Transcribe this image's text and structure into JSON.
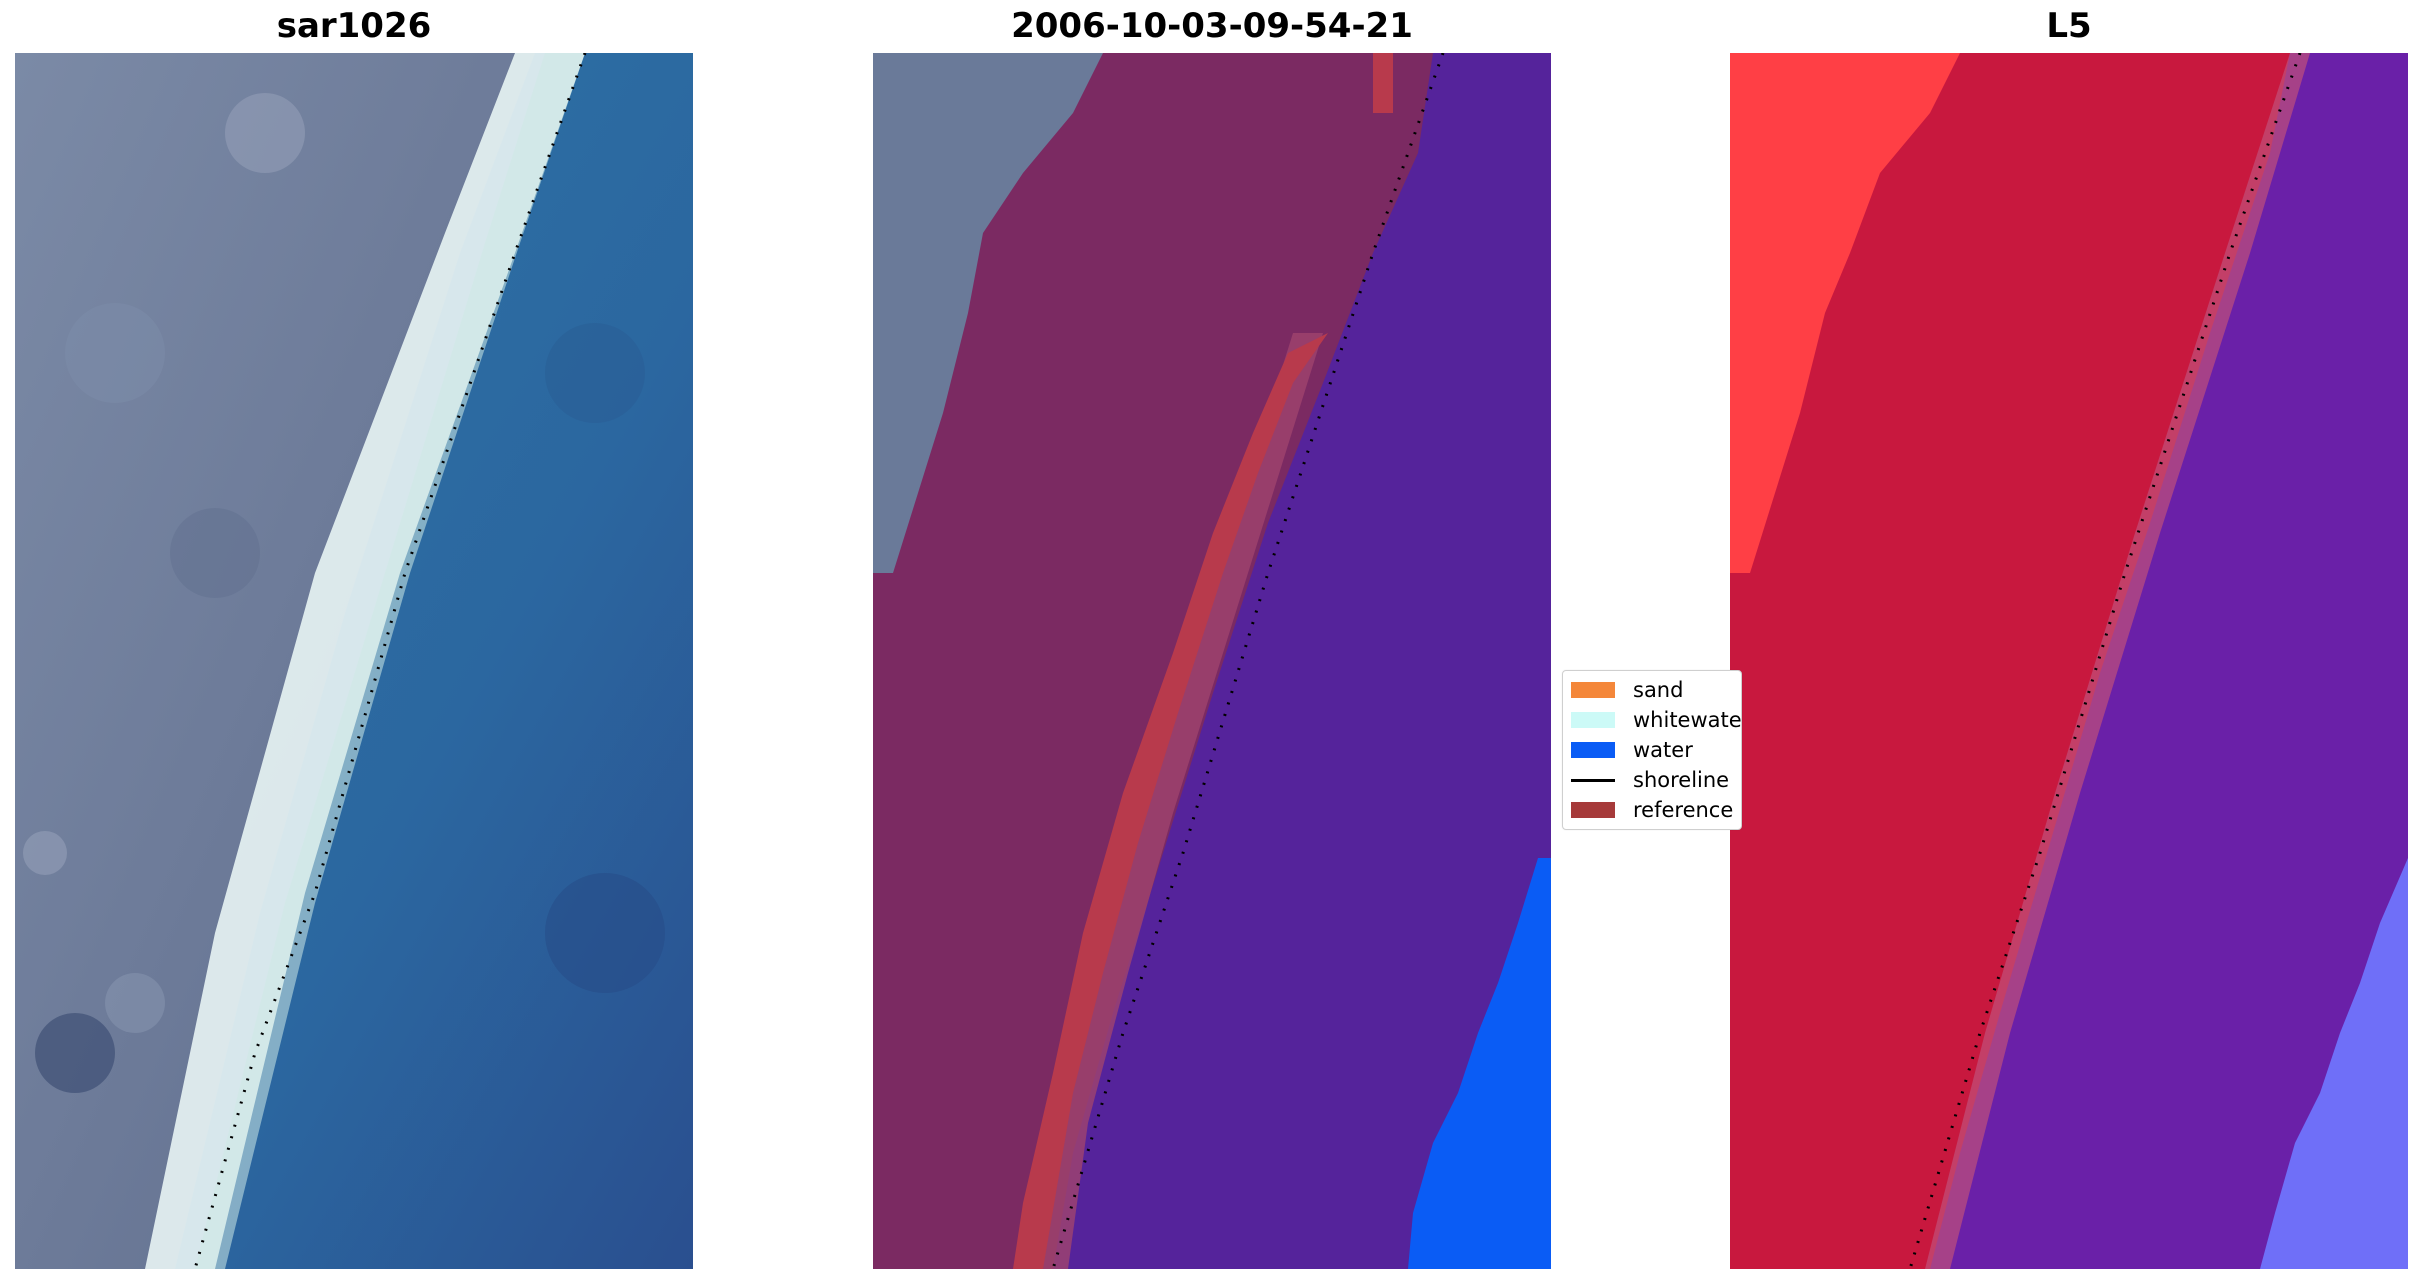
{
  "panels": [
    {
      "title": "sar1026"
    },
    {
      "title": "2006-10-03-09-54-21"
    },
    {
      "title": "L5"
    }
  ],
  "legend": {
    "items": [
      {
        "label": "sand",
        "color": "#f4873a",
        "kind": "patch"
      },
      {
        "label": "whitewater",
        "color": "#ccfaf7",
        "kind": "patch"
      },
      {
        "label": "water",
        "color": "#0a5cf5",
        "kind": "patch"
      },
      {
        "label": "shoreline",
        "color": "#000000",
        "kind": "line"
      },
      {
        "label": "reference",
        "color": "#a63a3a",
        "kind": "patch"
      }
    ]
  },
  "colors": {
    "land_rgb": "#6e7c97",
    "beach_rgb": "#e8f3f3",
    "sea_rgb": "#2c6aa0",
    "land_class": "#7b2a62",
    "sand_class": "#b83a4c",
    "water_class": "#55239b",
    "water_bright": "#0a5cf5",
    "l5_red": "#ff3a3a",
    "l5_crimson": "#c8183e",
    "l5_purple": "#6a20a8",
    "l5_lavender": "#6f6ff8"
  }
}
